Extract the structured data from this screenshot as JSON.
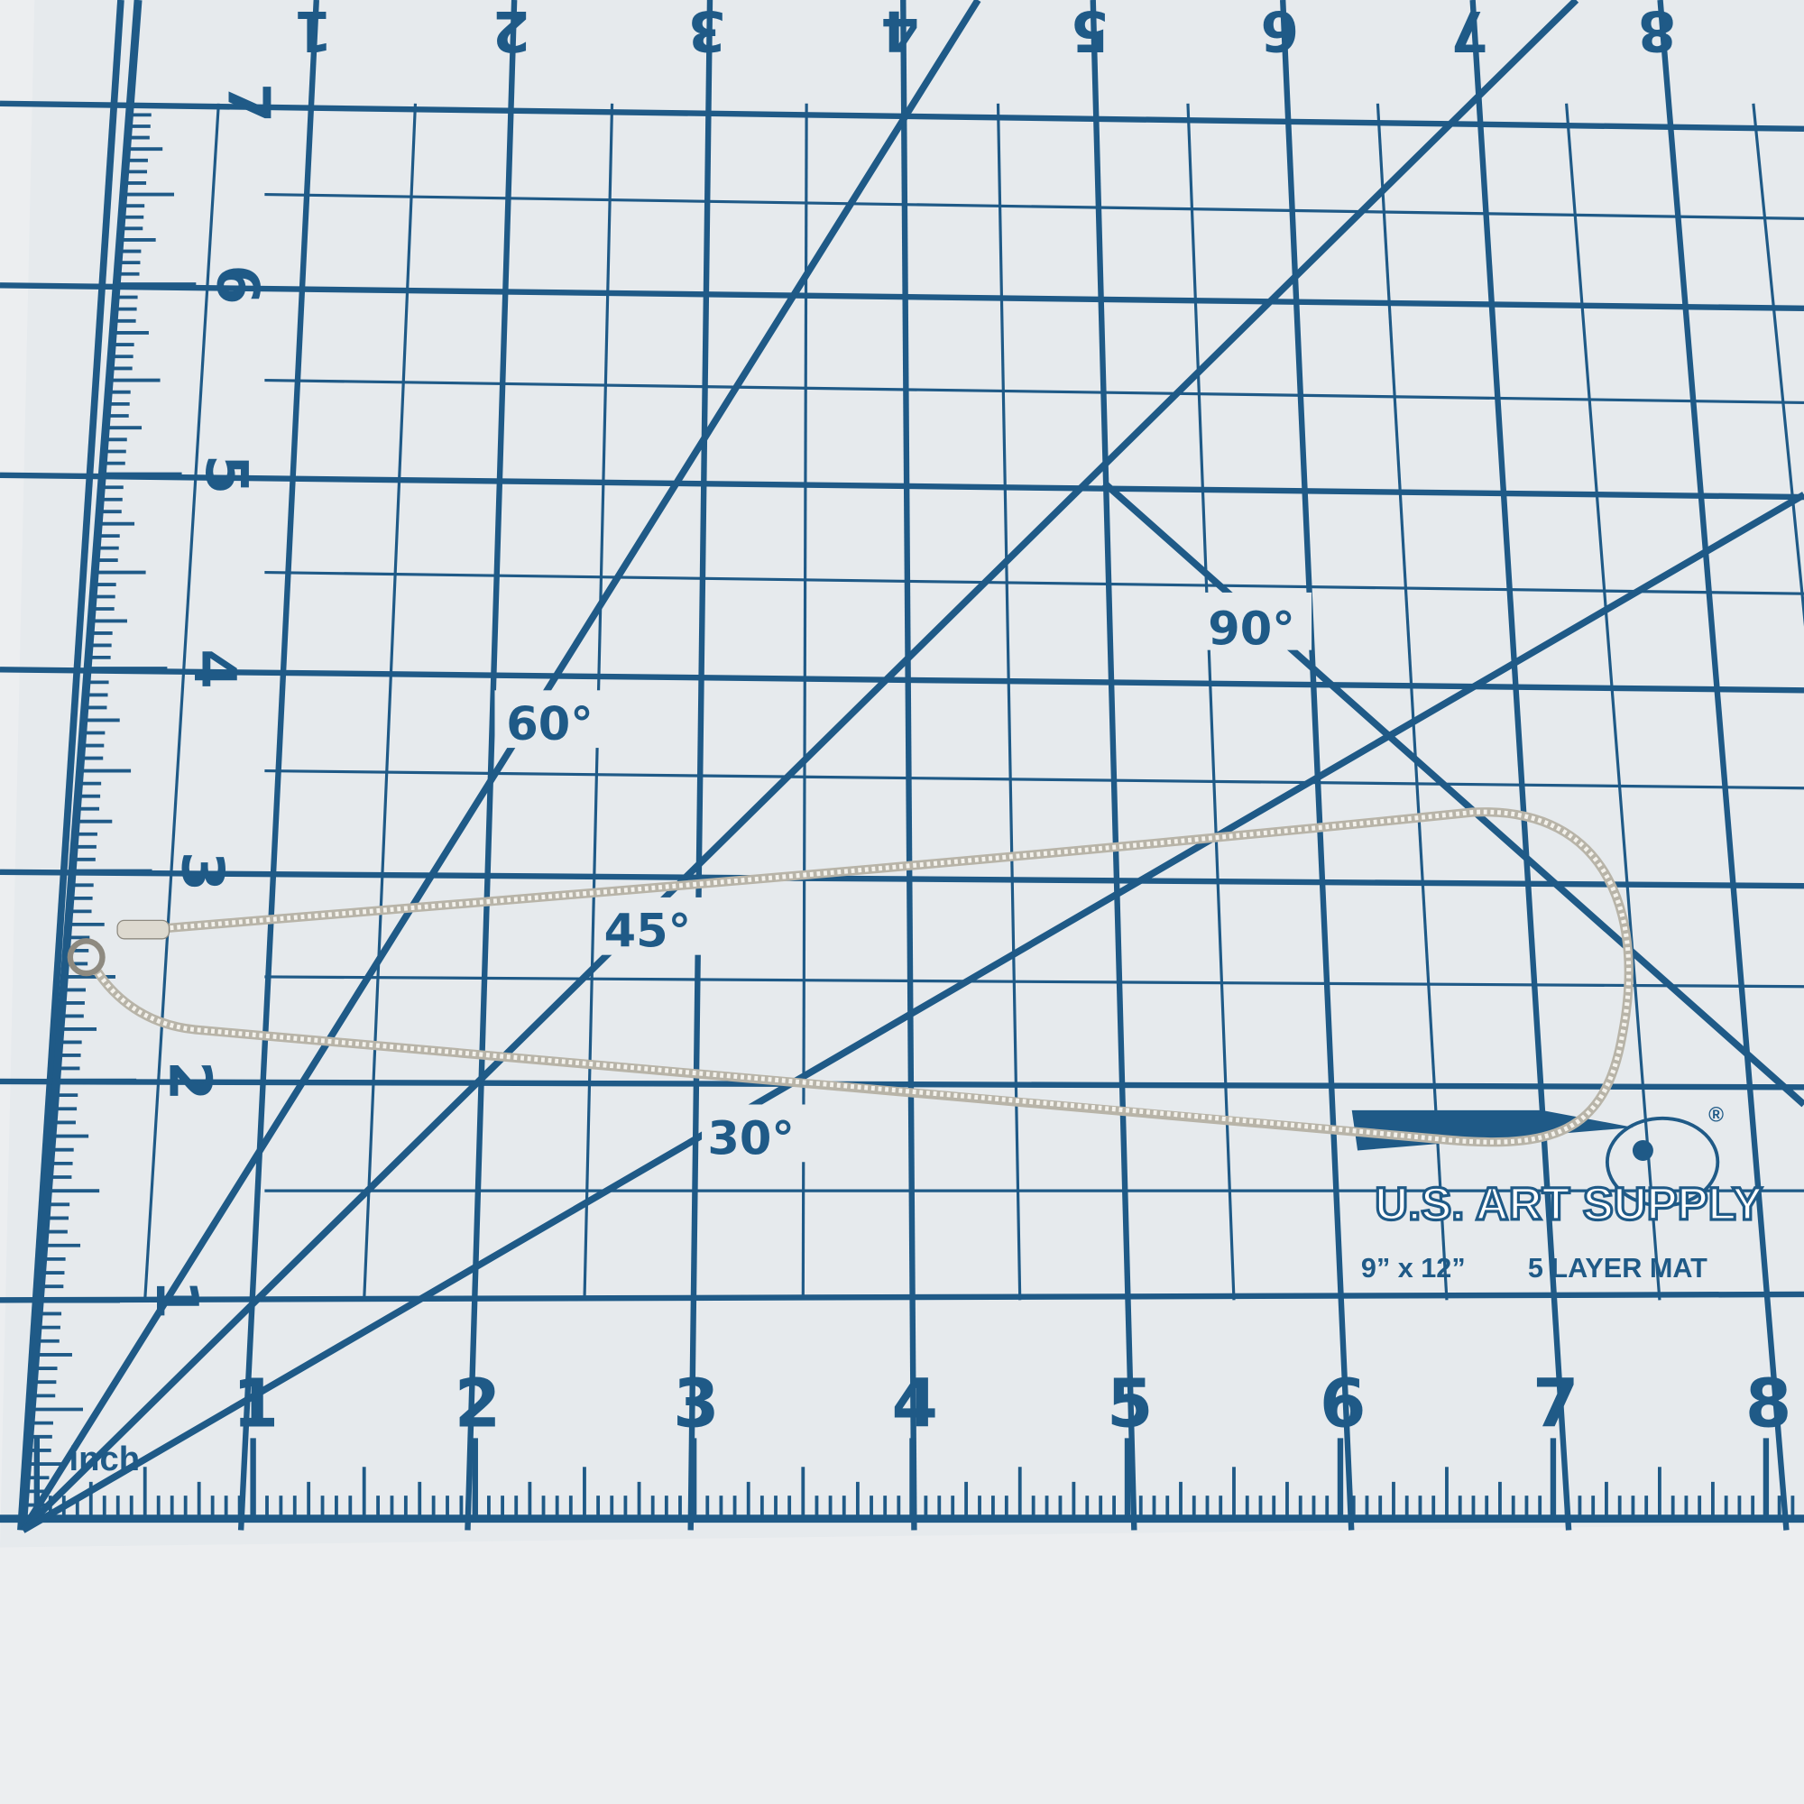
{
  "photo": {
    "subject": "silver herringbone chain necklace on cutting mat",
    "colors": {
      "mat": "#e8ebee",
      "grid": "#1f5a87",
      "chain": "#d9d6cc",
      "floor": "#eceef0"
    }
  },
  "mat": {
    "bottom_scale": [
      "1",
      "2",
      "3",
      "4",
      "5",
      "6",
      "7",
      "8"
    ],
    "left_scale": [
      "1",
      "2",
      "3",
      "4",
      "5",
      "6",
      "7"
    ],
    "top_scale": [
      "1",
      "2",
      "3",
      "4",
      "5",
      "6",
      "7",
      "8"
    ],
    "unit_label": "inch",
    "angles": {
      "a60": "60°",
      "a45": "45°",
      "a30": "30°",
      "a90": "90°"
    },
    "brand": {
      "logo_text": "U.S. ART SUPPLY",
      "registered": "®",
      "size": "9” x 12”",
      "type": "5 LAYER MAT"
    }
  }
}
